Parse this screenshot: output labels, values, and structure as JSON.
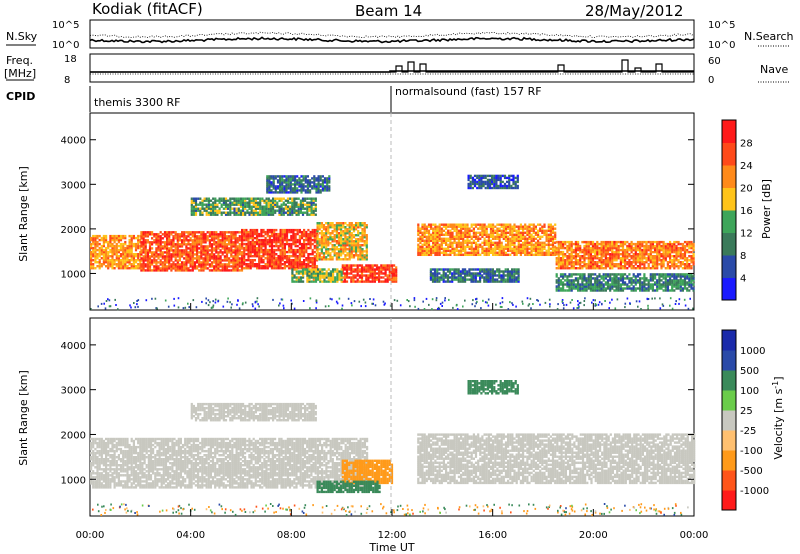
{
  "header": {
    "station": "Kodiak (fitACF)",
    "beam": "Beam 14",
    "date": "28/May/2012"
  },
  "panels_top": {
    "nsky_label": "N.Sky",
    "nsky_ticks": [
      "10^5",
      "10^0"
    ],
    "nsearch_label": "N.Search",
    "freq_label_1": "Freq.",
    "freq_label_2": "[MHz]",
    "freq_ticks": [
      "18",
      "8"
    ],
    "nave_label": "Nave",
    "nave_ticks": [
      "60",
      "0"
    ],
    "cpid_label": "CPID",
    "cpid_1": "themis 3300 RF",
    "cpid_2": "normalsound (fast) 157 RF"
  },
  "colors": {
    "power": [
      "#1a1aff",
      "#2a4aa8",
      "#3a7a5a",
      "#3ea55a",
      "#ffc41a",
      "#ff8a1a",
      "#ff4a1a",
      "#ff1a1a"
    ],
    "velocity": [
      "#ff1a1a",
      "#ff551a",
      "#ff9a1a",
      "#ffc070",
      "#c8c8c0",
      "#6acc4a",
      "#3a8a5a",
      "#2a4aa8",
      "#1a2aaa"
    ]
  },
  "chart_data": [
    {
      "type": "heatmap",
      "name": "power",
      "xlabel": "",
      "ylabel": "Slant Range [km]",
      "x_ticks": [
        "00:00",
        "04:00",
        "08:00",
        "12:00",
        "16:00",
        "20:00",
        "00:00"
      ],
      "y_ticks": [
        1000,
        2000,
        3000,
        4000
      ],
      "xlim": [
        0,
        24
      ],
      "ylim": [
        180,
        4600
      ],
      "colorbar_label": "Power [dB]",
      "colorbar_ticks": [
        4,
        8,
        12,
        16,
        20,
        24,
        28
      ],
      "colorbar_range": [
        0,
        30
      ],
      "bands": [
        {
          "t0": 0.0,
          "t1": 2.0,
          "r0": 1100,
          "r1": 1850,
          "v": 20
        },
        {
          "t0": 2.0,
          "t1": 6.0,
          "r0": 1050,
          "r1": 1950,
          "v": 24
        },
        {
          "t0": 6.0,
          "t1": 9.0,
          "r0": 1100,
          "r1": 2000,
          "v": 26
        },
        {
          "t0": 9.0,
          "t1": 11.0,
          "r0": 1300,
          "r1": 2150,
          "v": 18
        },
        {
          "t0": 4.0,
          "t1": 9.0,
          "r0": 2300,
          "r1": 2700,
          "v": 12
        },
        {
          "t0": 7.0,
          "t1": 9.5,
          "r0": 2800,
          "r1": 3200,
          "v": 8
        },
        {
          "t0": 10.0,
          "t1": 12.2,
          "r0": 800,
          "r1": 1200,
          "v": 26
        },
        {
          "t0": 8.0,
          "t1": 10.0,
          "r0": 800,
          "r1": 1100,
          "v": 14
        },
        {
          "t0": 13.0,
          "t1": 18.5,
          "r0": 1400,
          "r1": 2100,
          "v": 20
        },
        {
          "t0": 13.5,
          "t1": 17.0,
          "r0": 800,
          "r1": 1100,
          "v": 8
        },
        {
          "t0": 18.5,
          "t1": 24.0,
          "r0": 1100,
          "r1": 1700,
          "v": 22
        },
        {
          "t0": 18.5,
          "t1": 24.0,
          "r0": 600,
          "r1": 1000,
          "v": 10
        },
        {
          "t0": 15.0,
          "t1": 17.0,
          "r0": 2900,
          "r1": 3200,
          "v": 6
        }
      ]
    },
    {
      "type": "heatmap",
      "name": "velocity",
      "xlabel": "Time UT",
      "ylabel": "Slant Range [km]",
      "x_ticks": [
        "00:00",
        "04:00",
        "08:00",
        "12:00",
        "16:00",
        "20:00",
        "00:00"
      ],
      "y_ticks": [
        1000,
        2000,
        3000,
        4000
      ],
      "xlim": [
        0,
        24
      ],
      "ylim": [
        180,
        4600
      ],
      "colorbar_label": "Velocity [m s^-1]",
      "colorbar_ticks": [
        1000,
        500,
        100,
        25,
        -25,
        -100,
        -500,
        -1000
      ],
      "bands": [
        {
          "t0": 0.0,
          "t1": 11.0,
          "r0": 800,
          "r1": 1900,
          "v": 0
        },
        {
          "t0": 4.0,
          "t1": 9.0,
          "r0": 2300,
          "r1": 2700,
          "v": 0
        },
        {
          "t0": 10.0,
          "t1": 12.0,
          "r0": 900,
          "r1": 1400,
          "v": -150
        },
        {
          "t0": 9.0,
          "t1": 11.5,
          "r0": 700,
          "r1": 950,
          "v": 150
        },
        {
          "t0": 13.0,
          "t1": 24.0,
          "r0": 900,
          "r1": 2000,
          "v": 0
        },
        {
          "t0": 15.0,
          "t1": 17.0,
          "r0": 2900,
          "r1": 3200,
          "v": 150
        }
      ]
    }
  ]
}
